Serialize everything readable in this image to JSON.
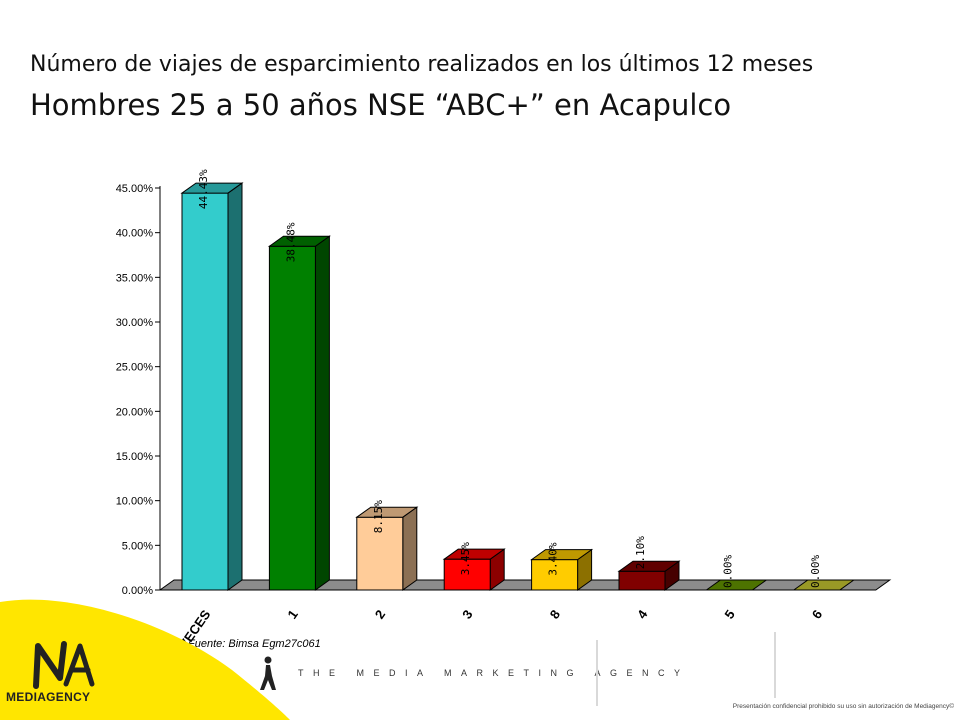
{
  "header": {
    "title_line1": "Número de viajes de esparcimiento realizados en los últimos 12 meses",
    "title_line2": "Hombres 25 a 50 años NSE “ABC+” en Acapulco"
  },
  "chart_data": {
    "type": "bar",
    "title": "Número de viajes de esparcimiento realizados en los últimos 12 meses",
    "subtitle": "Hombres 25 a 50 años NSE “ABC+” en Acapulco",
    "categories": [
      "CERO VECES",
      "1",
      "2",
      "3",
      "8",
      "4",
      "5",
      "6"
    ],
    "values": [
      44.43,
      38.48,
      8.15,
      3.45,
      3.4,
      2.1,
      0.0,
      0.0
    ],
    "value_labels": [
      "44.43%",
      "38.48%",
      "8.15%",
      "3.45%",
      "3.40%",
      "2.10%",
      "0.00%",
      "0.00%"
    ],
    "colors": [
      "#33cccc",
      "#008000",
      "#ffcc99",
      "#ff0000",
      "#ffcc00",
      "#800000",
      "#669900",
      "#cccc33"
    ],
    "yticks": [
      "0.00%",
      "5.00%",
      "10.00%",
      "15.00%",
      "20.00%",
      "25.00%",
      "30.00%",
      "35.00%",
      "40.00%",
      "45.00%"
    ],
    "ylim": [
      0,
      45
    ],
    "xlabel": "",
    "ylabel": "",
    "grid": false,
    "legend": "none",
    "style": "3d-column"
  },
  "source": "Fuente: Bimsa Egm27c061",
  "footer": {
    "brand": "MEDIAGENCY",
    "tagline": "THE MEDIA MARKETING AGENCY",
    "note": "Presentación confidencial prohibido su uso sin autorización de Mediagency©",
    "brand_color": "#ffe600"
  }
}
